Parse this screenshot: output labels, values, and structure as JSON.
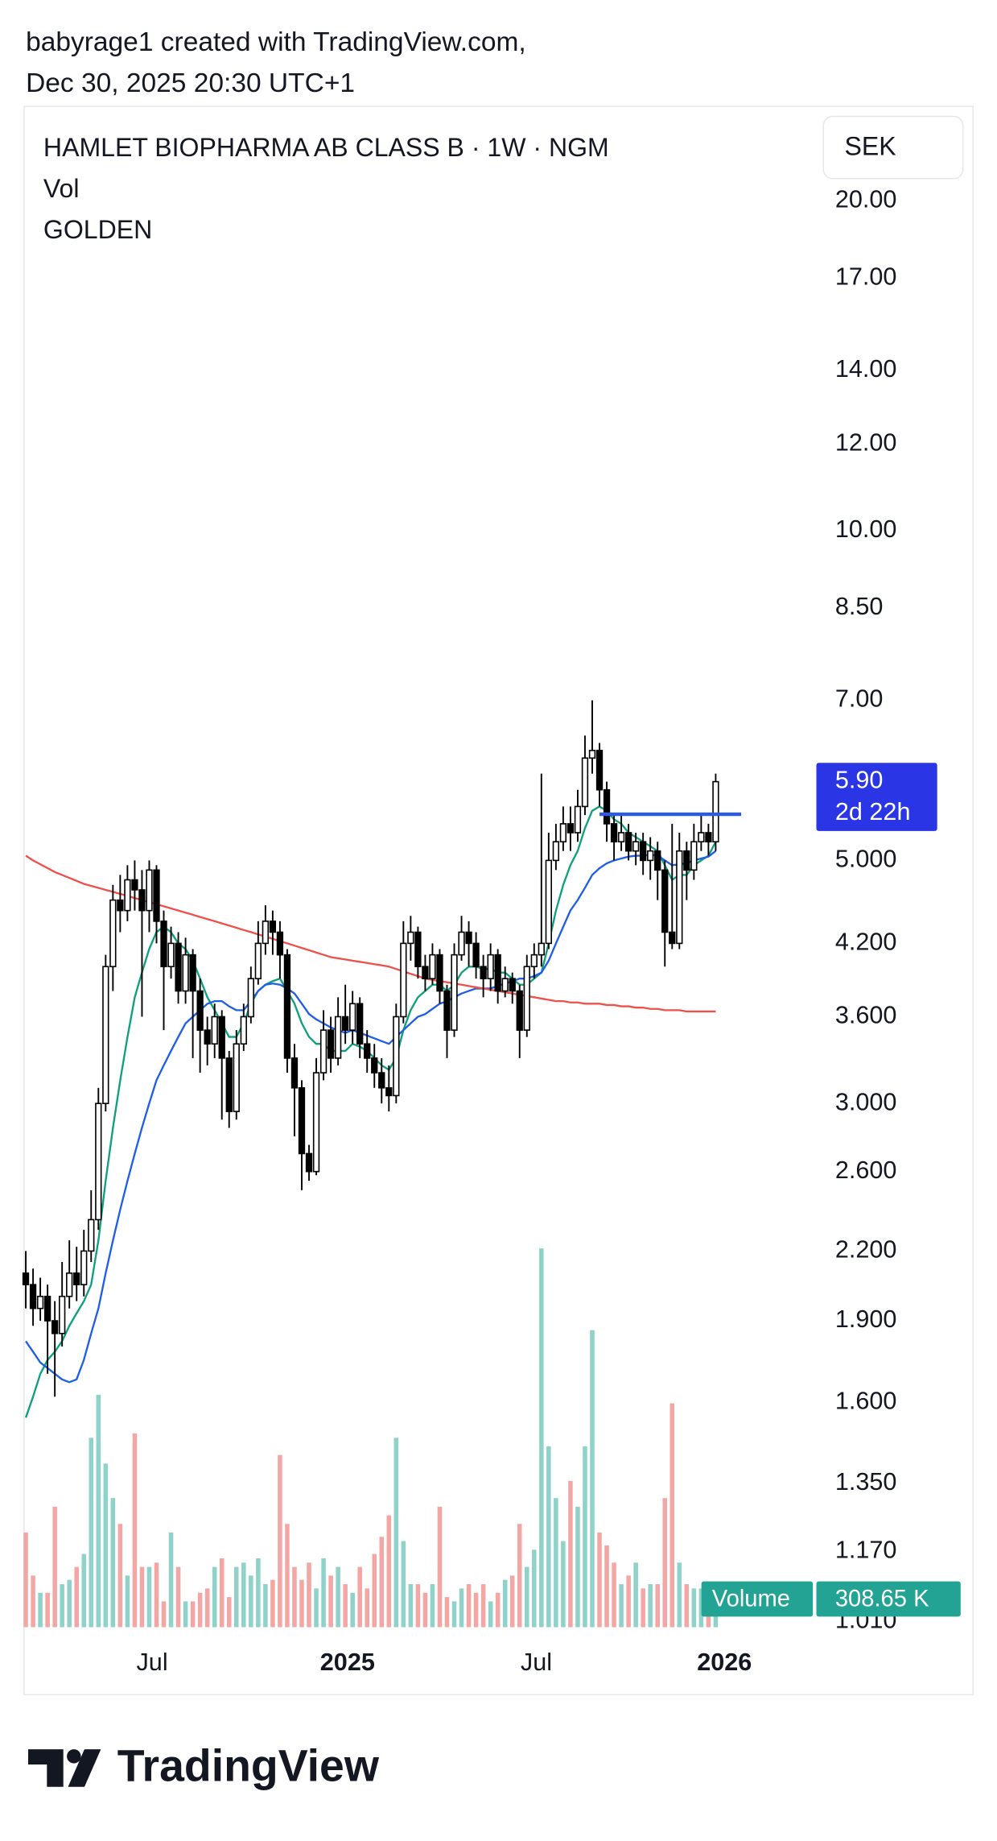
{
  "header": {
    "line1": "babyrage1 created with TradingView.com,",
    "line2": "Dec 30, 2025 20:30 UTC+1"
  },
  "footer": {
    "logo_text": "TradingView"
  },
  "chart_data": {
    "type": "candlestick",
    "title": "HAMLET BIOPHARMA AB CLASS B · 1W · NGM",
    "volume_label": "Vol",
    "indicator_label": "GOLDEN",
    "currency": "SEK",
    "log_scale": true,
    "ylim": [
      0.964,
      24.3
    ],
    "yticks": [
      {
        "value": 20,
        "label": "20.00"
      },
      {
        "value": 17,
        "label": "17.00"
      },
      {
        "value": 14,
        "label": "14.00"
      },
      {
        "value": 12,
        "label": "12.00"
      },
      {
        "value": 10,
        "label": "10.00"
      },
      {
        "value": 8.5,
        "label": "8.50"
      },
      {
        "value": 7,
        "label": "7.00"
      },
      {
        "value": 5,
        "label": "5.000"
      },
      {
        "value": 4.2,
        "label": "4.200"
      },
      {
        "value": 3.6,
        "label": "3.600"
      },
      {
        "value": 3,
        "label": "3.000"
      },
      {
        "value": 2.6,
        "label": "2.600"
      },
      {
        "value": 2.2,
        "label": "2.200"
      },
      {
        "value": 1.9,
        "label": "1.900"
      },
      {
        "value": 1.6,
        "label": "1.600"
      },
      {
        "value": 1.35,
        "label": "1.350"
      },
      {
        "value": 1.17,
        "label": "1.170"
      },
      {
        "value": 1.01,
        "label": "1.010"
      }
    ],
    "xlim": [
      -0.32,
      108.7
    ],
    "xticks": [
      {
        "value": 17.4,
        "label": "Jul"
      },
      {
        "value": 44.3,
        "label": "2025"
      },
      {
        "value": 70.3,
        "label": "Jul"
      },
      {
        "value": 96.2,
        "label": "2026"
      }
    ],
    "up_color": "#ffffff",
    "down_color": "#000000",
    "open": [
      2.1,
      2.05,
      1.95,
      2.0,
      1.9,
      1.85,
      2.0,
      2.1,
      2.05,
      2.2,
      2.35,
      3.0,
      4.0,
      4.6,
      4.5,
      4.8,
      4.7,
      4.5,
      4.9,
      4.4,
      4.0,
      4.2,
      3.8,
      4.1,
      3.8,
      3.5,
      3.4,
      3.6,
      3.3,
      2.95,
      3.4,
      3.6,
      3.9,
      4.2,
      4.4,
      4.3,
      4.1,
      3.3,
      3.1,
      2.7,
      2.6,
      3.2,
      3.5,
      3.3,
      3.6,
      3.5,
      3.7,
      3.4,
      3.3,
      3.2,
      3.1,
      3.05,
      3.6,
      4.2,
      4.3,
      4.0,
      3.9,
      4.1,
      3.8,
      3.5,
      4.1,
      4.3,
      4.2,
      4.0,
      3.9,
      4.1,
      3.8,
      3.9,
      3.8,
      3.5,
      4.0,
      4.1,
      4.2,
      5.0,
      5.2,
      5.4,
      5.3,
      5.6,
      6.2,
      6.3,
      5.8,
      5.4,
      5.2,
      5.3,
      5.1,
      5.2,
      5.0,
      5.1,
      4.9,
      4.3,
      4.2,
      5.1,
      4.9,
      5.2,
      5.3,
      5.2
    ],
    "high": [
      2.2,
      2.12,
      2.08,
      2.05,
      1.98,
      2.15,
      2.25,
      2.22,
      2.3,
      2.5,
      3.1,
      4.1,
      4.75,
      4.85,
      4.95,
      5.0,
      4.9,
      5.0,
      4.95,
      4.5,
      4.35,
      4.3,
      4.25,
      4.15,
      3.9,
      3.6,
      3.7,
      3.65,
      3.35,
      3.5,
      3.7,
      4.0,
      4.4,
      4.55,
      4.5,
      4.4,
      4.15,
      3.4,
      3.15,
      2.75,
      3.3,
      3.65,
      3.6,
      3.75,
      3.85,
      3.8,
      3.75,
      3.5,
      3.4,
      3.3,
      3.25,
      3.7,
      4.4,
      4.45,
      4.35,
      4.1,
      4.2,
      4.15,
      3.85,
      4.2,
      4.45,
      4.4,
      4.3,
      4.1,
      4.2,
      4.15,
      4.0,
      3.95,
      3.85,
      4.1,
      4.2,
      6.0,
      5.3,
      5.4,
      5.6,
      5.6,
      5.8,
      6.5,
      7.0,
      6.4,
      5.9,
      5.5,
      5.5,
      5.4,
      5.3,
      5.3,
      5.25,
      5.2,
      5.0,
      5.4,
      5.3,
      5.2,
      5.4,
      5.5,
      5.4,
      6.0
    ],
    "low": [
      1.95,
      1.88,
      1.9,
      1.7,
      1.62,
      1.8,
      1.95,
      1.98,
      2.0,
      2.15,
      2.3,
      2.95,
      3.8,
      4.3,
      4.4,
      4.5,
      3.6,
      4.3,
      4.2,
      3.5,
      3.9,
      3.7,
      3.7,
      3.3,
      3.2,
      3.25,
      3.3,
      2.9,
      2.85,
      2.9,
      3.35,
      3.55,
      3.85,
      4.1,
      4.1,
      3.9,
      3.2,
      2.8,
      2.5,
      2.55,
      2.58,
      3.15,
      3.2,
      3.25,
      3.4,
      3.4,
      3.3,
      3.2,
      3.1,
      3.0,
      2.95,
      3.0,
      3.55,
      4.05,
      3.9,
      3.8,
      3.85,
      3.7,
      3.3,
      3.45,
      4.05,
      4.0,
      3.9,
      3.75,
      3.8,
      3.7,
      3.75,
      3.7,
      3.3,
      3.45,
      3.9,
      4.0,
      4.15,
      4.9,
      5.1,
      5.1,
      5.2,
      5.5,
      6.0,
      5.6,
      5.2,
      5.0,
      5.1,
      5.0,
      4.95,
      4.85,
      4.8,
      4.6,
      4.0,
      4.15,
      4.15,
      4.6,
      4.8,
      5.1,
      5.05,
      5.1
    ],
    "close": [
      2.05,
      1.95,
      2.0,
      1.9,
      1.85,
      2.0,
      2.1,
      2.05,
      2.2,
      2.35,
      3.0,
      4.0,
      4.6,
      4.5,
      4.8,
      4.7,
      4.5,
      4.9,
      4.4,
      4.0,
      4.2,
      3.8,
      4.1,
      3.8,
      3.5,
      3.4,
      3.6,
      3.3,
      2.95,
      3.4,
      3.6,
      3.9,
      4.2,
      4.4,
      4.3,
      4.1,
      3.3,
      3.1,
      2.7,
      2.6,
      3.2,
      3.5,
      3.3,
      3.6,
      3.5,
      3.7,
      3.4,
      3.3,
      3.2,
      3.1,
      3.05,
      3.6,
      4.2,
      4.3,
      4.0,
      3.9,
      4.1,
      3.8,
      3.5,
      4.1,
      4.3,
      4.2,
      4.0,
      3.9,
      4.1,
      3.8,
      3.9,
      3.8,
      3.5,
      4.0,
      4.1,
      4.2,
      5.0,
      5.2,
      5.4,
      5.3,
      5.6,
      6.2,
      6.3,
      5.8,
      5.4,
      5.2,
      5.3,
      5.1,
      5.2,
      5.0,
      5.1,
      4.9,
      4.3,
      4.2,
      5.1,
      4.9,
      5.2,
      5.3,
      5.2,
      5.9
    ],
    "last_price_label": "5.90",
    "countdown": "2d 22h",
    "last_price_color": "#2a35e6",
    "lines": [
      {
        "color": "#0e9f7e",
        "values": [
          1.55,
          1.62,
          1.7,
          1.75,
          1.78,
          1.82,
          1.88,
          1.93,
          1.98,
          2.05,
          2.25,
          2.55,
          2.85,
          3.15,
          3.45,
          3.75,
          3.95,
          4.15,
          4.3,
          4.35,
          4.3,
          4.2,
          4.15,
          4.05,
          3.9,
          3.75,
          3.65,
          3.55,
          3.45,
          3.45,
          3.55,
          3.7,
          3.8,
          3.85,
          3.88,
          3.9,
          3.8,
          3.7,
          3.55,
          3.45,
          3.4,
          3.4,
          3.35,
          3.35,
          3.35,
          3.4,
          3.38,
          3.35,
          3.3,
          3.25,
          3.22,
          3.3,
          3.5,
          3.65,
          3.75,
          3.8,
          3.85,
          3.85,
          3.8,
          3.85,
          3.95,
          4.0,
          4.0,
          3.98,
          3.98,
          3.95,
          3.95,
          3.9,
          3.85,
          3.85,
          3.9,
          3.95,
          4.2,
          4.5,
          4.75,
          4.95,
          5.1,
          5.35,
          5.55,
          5.6,
          5.55,
          5.45,
          5.4,
          5.3,
          5.25,
          5.2,
          5.15,
          5.1,
          4.95,
          4.8,
          4.85,
          4.85,
          4.95,
          5.0,
          5.05,
          5.2
        ]
      },
      {
        "color": "#1f5ee6",
        "values": [
          1.82,
          1.78,
          1.74,
          1.72,
          1.7,
          1.68,
          1.67,
          1.68,
          1.75,
          1.85,
          1.95,
          2.1,
          2.25,
          2.4,
          2.55,
          2.7,
          2.85,
          3.0,
          3.15,
          3.25,
          3.35,
          3.45,
          3.55,
          3.6,
          3.65,
          3.7,
          3.72,
          3.72,
          3.68,
          3.65,
          3.65,
          3.72,
          3.8,
          3.85,
          3.86,
          3.85,
          3.82,
          3.78,
          3.7,
          3.62,
          3.58,
          3.55,
          3.52,
          3.5,
          3.48,
          3.5,
          3.48,
          3.46,
          3.44,
          3.42,
          3.4,
          3.45,
          3.5,
          3.55,
          3.6,
          3.62,
          3.66,
          3.7,
          3.72,
          3.75,
          3.78,
          3.8,
          3.82,
          3.82,
          3.82,
          3.84,
          3.86,
          3.88,
          3.9,
          3.9,
          3.92,
          3.95,
          4.05,
          4.2,
          4.35,
          4.5,
          4.6,
          4.72,
          4.85,
          4.92,
          4.97,
          5.0,
          5.02,
          5.04,
          5.05,
          5.05,
          5.06,
          5.05,
          5.0,
          4.95,
          4.96,
          4.97,
          5.0,
          5.02,
          5.04,
          5.1
        ]
      },
      {
        "color": "#f0504a",
        "values": [
          5.05,
          5.0,
          4.96,
          4.92,
          4.88,
          4.85,
          4.82,
          4.79,
          4.76,
          4.74,
          4.72,
          4.7,
          4.68,
          4.66,
          4.64,
          4.62,
          4.6,
          4.58,
          4.56,
          4.54,
          4.52,
          4.5,
          4.48,
          4.46,
          4.44,
          4.42,
          4.4,
          4.38,
          4.36,
          4.34,
          4.32,
          4.3,
          4.28,
          4.26,
          4.24,
          4.22,
          4.2,
          4.18,
          4.16,
          4.14,
          4.12,
          4.1,
          4.08,
          4.07,
          4.06,
          4.05,
          4.04,
          4.03,
          4.02,
          4.01,
          4.0,
          3.98,
          3.96,
          3.94,
          3.92,
          3.9,
          3.89,
          3.88,
          3.87,
          3.86,
          3.85,
          3.84,
          3.83,
          3.82,
          3.81,
          3.8,
          3.79,
          3.78,
          3.77,
          3.76,
          3.75,
          3.74,
          3.73,
          3.72,
          3.72,
          3.71,
          3.71,
          3.7,
          3.7,
          3.7,
          3.69,
          3.69,
          3.68,
          3.68,
          3.67,
          3.67,
          3.66,
          3.66,
          3.65,
          3.65,
          3.65,
          3.64,
          3.64,
          3.64,
          3.64,
          3.64
        ]
      }
    ],
    "hline": {
      "value": 5.51,
      "x": [
        79,
        98.5
      ],
      "color": "#2a5ae8"
    },
    "volume": {
      "name": "Volume",
      "vlim": [
        0,
        4500
      ],
      "up_color": "#8fd2ca",
      "down_color": "#f3a7a5",
      "label_color": "#22a394",
      "last_label": "308.65 K",
      "values": [
        1100,
        600,
        400,
        400,
        1400,
        500,
        550,
        700,
        850,
        2200,
        2700,
        1900,
        1500,
        1200,
        600,
        2250,
        700,
        700,
        750,
        300,
        1100,
        700,
        300,
        300,
        400,
        450,
        700,
        800,
        350,
        700,
        750,
        600,
        800,
        500,
        550,
        2000,
        1200,
        700,
        550,
        750,
        450,
        800,
        600,
        700,
        500,
        400,
        700,
        450,
        850,
        1050,
        1300,
        2200,
        1000,
        500,
        500,
        400,
        500,
        1400,
        350,
        300,
        450,
        500,
        400,
        500,
        300,
        400,
        550,
        600,
        1200,
        700,
        900,
        4400,
        2100,
        1500,
        1000,
        1700,
        1400,
        2100,
        3450,
        1100,
        950,
        750,
        500,
        600,
        750,
        450,
        500,
        500,
        1500,
        2600,
        750,
        500,
        450,
        450,
        500,
        308.65
      ]
    }
  }
}
